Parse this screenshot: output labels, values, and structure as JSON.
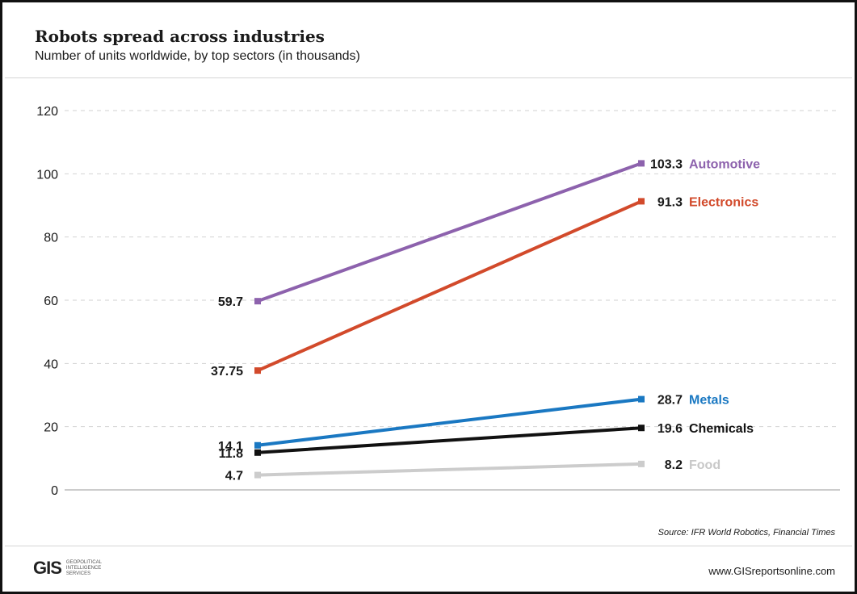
{
  "header": {
    "title": "Robots spread across industries",
    "subtitle": "Number of units worldwide, by top sectors (in thousands)"
  },
  "footer": {
    "source": "Source: IFR World Robotics, Financial Times",
    "website": "www.GISreportsonline.com",
    "logo_mark": "GIS",
    "logo_line1": "Geopolitical",
    "logo_line2": "Intelligence",
    "logo_line3": "Services"
  },
  "chart_data": {
    "type": "line",
    "title": "Robots spread across industries",
    "subtitle": "Number of units worldwide, by top sectors (in thousands)",
    "ylim": [
      0,
      120
    ],
    "yticks": [
      0,
      20,
      40,
      60,
      80,
      100,
      120
    ],
    "grid": true,
    "series": [
      {
        "name": "Automotive",
        "values": [
          59.7,
          103.3
        ],
        "labels": [
          "59.7",
          "103.3"
        ],
        "color": "#8d62ad",
        "label_color": "#8d62ad"
      },
      {
        "name": "Electronics",
        "values": [
          37.75,
          91.3
        ],
        "labels": [
          "37.75",
          "91.3"
        ],
        "color": "#d24a2b",
        "label_color": "#d24a2b"
      },
      {
        "name": "Metals",
        "values": [
          14.1,
          28.7
        ],
        "labels": [
          "14.1",
          "28.7"
        ],
        "color": "#1a78c2",
        "label_color": "#1a78c2"
      },
      {
        "name": "Chemicals",
        "values": [
          11.8,
          19.6
        ],
        "labels": [
          "11.8",
          "19.6"
        ],
        "color": "#111111",
        "label_color": "#111111"
      },
      {
        "name": "Food",
        "values": [
          4.7,
          8.2
        ],
        "labels": [
          "4.7",
          "8.2"
        ],
        "color": "#cccccc",
        "label_color": "#c8c8c8"
      }
    ]
  }
}
